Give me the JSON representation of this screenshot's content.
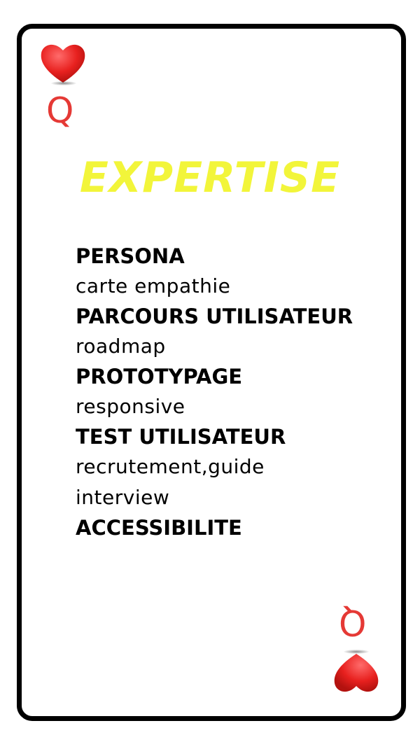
{
  "card": {
    "suit_icon": "heart-icon",
    "rank": "Q",
    "colors": {
      "border": "#000000",
      "suit": "#e53935",
      "title": "#f2f53a",
      "text": "#000000"
    }
  },
  "title": "EXPERTISE",
  "items": [
    {
      "title": "PERSONA",
      "sub": [
        "carte empathie"
      ]
    },
    {
      "title": "PARCOURS UTILISATEUR",
      "sub": [
        "roadmap"
      ]
    },
    {
      "title": "PROTOTYPAGE",
      "sub": [
        "responsive"
      ]
    },
    {
      "title": "TEST UTILISATEUR",
      "sub": [
        "recrutement,guide",
        "interview"
      ]
    },
    {
      "title": "ACCESSIBILITE",
      "sub": []
    }
  ]
}
